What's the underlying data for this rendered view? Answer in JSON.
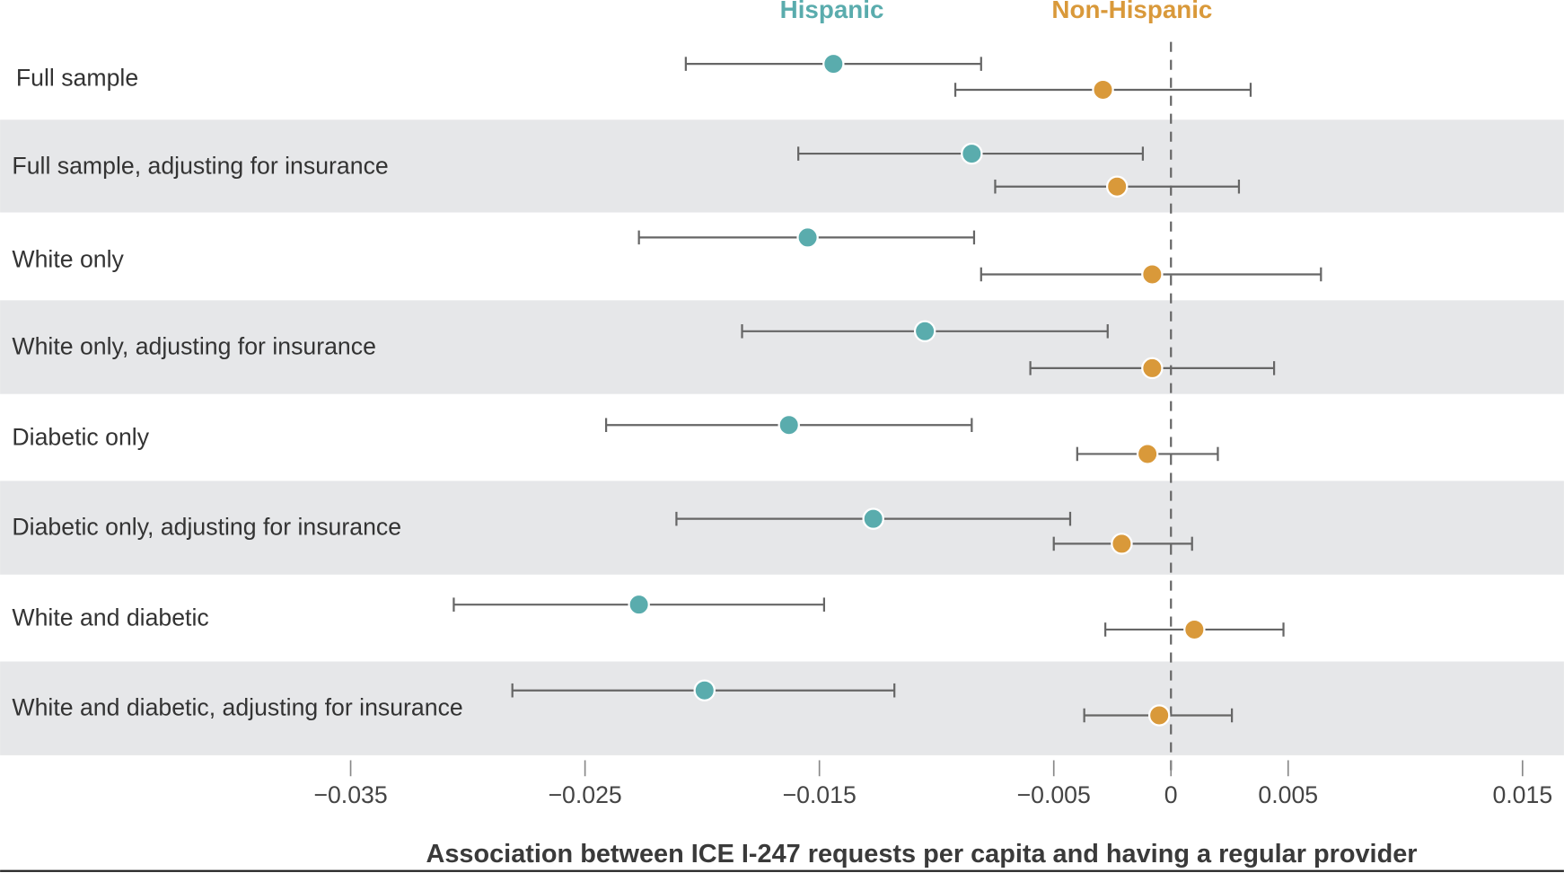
{
  "chart_data": {
    "type": "forest",
    "xlabel": "Association between ICE I-247 requests per capita and having a regular provider",
    "xlim": [
      -0.0385,
      0.0165
    ],
    "xticks": [
      -0.035,
      -0.025,
      -0.015,
      -0.005,
      0,
      0.005,
      0.015
    ],
    "xtick_labels": [
      "−0.035",
      "−0.025",
      "−0.015",
      "−0.005",
      "0",
      "0.005",
      "0.015"
    ],
    "reference_line": 0,
    "legend_placement": "top",
    "colors": {
      "Hispanic": "#5aacad",
      "Non-Hispanic": "#d9993a",
      "band": "#e6e7e9",
      "whisker": "#666666"
    },
    "series": [
      {
        "name": "Hispanic",
        "estimates": [
          -0.0144,
          -0.0085,
          -0.0155,
          -0.0105,
          -0.0163,
          -0.0127,
          -0.0227,
          -0.0199
        ],
        "ci_low": [
          -0.0207,
          -0.0159,
          -0.0227,
          -0.0183,
          -0.0241,
          -0.0211,
          -0.0306,
          -0.0281
        ],
        "ci_high": [
          -0.0081,
          -0.0012,
          -0.0084,
          -0.0027,
          -0.0085,
          -0.0043,
          -0.0148,
          -0.0118
        ]
      },
      {
        "name": "Non-Hispanic",
        "estimates": [
          -0.0029,
          -0.0023,
          -0.0008,
          -0.0008,
          -0.001,
          -0.0021,
          0.001,
          -0.0005
        ],
        "ci_low": [
          -0.0092,
          -0.0075,
          -0.0081,
          -0.006,
          -0.004,
          -0.005,
          -0.0028,
          -0.0037
        ],
        "ci_high": [
          0.0034,
          0.0029,
          0.0064,
          0.0044,
          0.002,
          0.0009,
          0.0048,
          0.0026
        ]
      }
    ],
    "categories": [
      "Full sample",
      "Full sample, adjusting for insurance",
      "White only",
      "White only, adjusting for insurance",
      "Diabetic only",
      "Diabetic only, adjusting for insurance",
      "White and diabetic",
      "White and diabetic, adjusting for insurance"
    ]
  }
}
